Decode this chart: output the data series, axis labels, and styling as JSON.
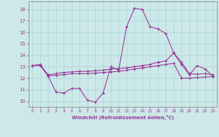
{
  "xlabel": "Windchill (Refroidissement éolien,°C)",
  "bg_color": "#cce8e8",
  "grid_color": "#aad4d4",
  "line_color": "#993399",
  "spine_color": "#888888",
  "xlim": [
    -0.5,
    23.5
  ],
  "ylim": [
    9.5,
    18.7
  ],
  "xticks": [
    0,
    1,
    2,
    3,
    4,
    5,
    6,
    7,
    8,
    9,
    10,
    11,
    12,
    13,
    14,
    15,
    16,
    17,
    18,
    19,
    20,
    21,
    22,
    23
  ],
  "yticks": [
    10,
    11,
    12,
    13,
    14,
    15,
    16,
    17,
    18
  ],
  "line1_x": [
    0,
    1,
    2,
    3,
    4,
    5,
    6,
    7,
    8,
    9,
    10,
    11,
    12,
    13,
    14,
    15,
    16,
    17,
    18,
    19,
    20,
    21,
    22,
    23
  ],
  "line1_y": [
    13.1,
    13.2,
    12.2,
    10.8,
    10.7,
    11.1,
    11.1,
    10.1,
    9.9,
    10.7,
    13.0,
    12.7,
    16.5,
    18.1,
    18.0,
    16.5,
    16.3,
    15.9,
    14.2,
    13.2,
    12.3,
    13.1,
    12.8,
    12.2
  ],
  "line2_x": [
    0,
    1,
    2,
    3,
    4,
    5,
    6,
    7,
    8,
    9,
    10,
    11,
    12,
    13,
    14,
    15,
    16,
    17,
    18,
    19,
    20,
    21,
    22,
    23
  ],
  "line2_y": [
    13.1,
    13.15,
    12.3,
    12.4,
    12.5,
    12.55,
    12.6,
    12.6,
    12.65,
    12.7,
    12.8,
    12.85,
    12.9,
    13.0,
    13.1,
    13.2,
    13.4,
    13.5,
    14.2,
    13.4,
    12.4,
    12.35,
    12.4,
    12.3
  ],
  "line3_x": [
    0,
    1,
    2,
    3,
    4,
    5,
    6,
    7,
    8,
    9,
    10,
    11,
    12,
    13,
    14,
    15,
    16,
    17,
    18,
    19,
    20,
    21,
    22,
    23
  ],
  "line3_y": [
    13.1,
    13.1,
    12.2,
    12.25,
    12.3,
    12.4,
    12.4,
    12.4,
    12.45,
    12.5,
    12.55,
    12.6,
    12.7,
    12.8,
    12.9,
    13.0,
    13.1,
    13.2,
    13.3,
    12.0,
    12.0,
    12.05,
    12.1,
    12.15
  ]
}
